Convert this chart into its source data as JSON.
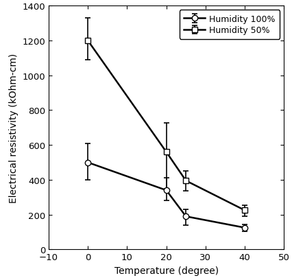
{
  "title": "",
  "xlabel": "Temperature (degree)",
  "ylabel": "Electrical resistivity (kOhm-cm)",
  "xlim": [
    -10,
    50
  ],
  "ylim": [
    0,
    1400
  ],
  "xticks": [
    -10,
    0,
    10,
    20,
    30,
    40,
    50
  ],
  "yticks": [
    0,
    200,
    400,
    600,
    800,
    1000,
    1200,
    1400
  ],
  "series": [
    {
      "label": "Humidity 100%",
      "marker": "o",
      "x": [
        0,
        20,
        25,
        40
      ],
      "y": [
        500,
        340,
        190,
        125
      ],
      "yerr_lower": [
        100,
        60,
        50,
        20
      ],
      "yerr_upper": [
        110,
        70,
        40,
        20
      ],
      "color": "#000000",
      "markersize": 6,
      "markerfacecolor": "white",
      "linewidth": 1.8
    },
    {
      "label": "Humidity 50%",
      "marker": "s",
      "x": [
        0,
        20,
        25,
        40
      ],
      "y": [
        1200,
        560,
        395,
        225
      ],
      "yerr_lower": [
        110,
        210,
        60,
        35
      ],
      "yerr_upper": [
        130,
        165,
        55,
        30
      ],
      "color": "#000000",
      "markersize": 6,
      "markerfacecolor": "white",
      "linewidth": 1.8
    }
  ],
  "legend_loc": "upper right",
  "background_color": "#ffffff",
  "figure_width": 4.27,
  "figure_height": 4.06,
  "dpi": 100
}
